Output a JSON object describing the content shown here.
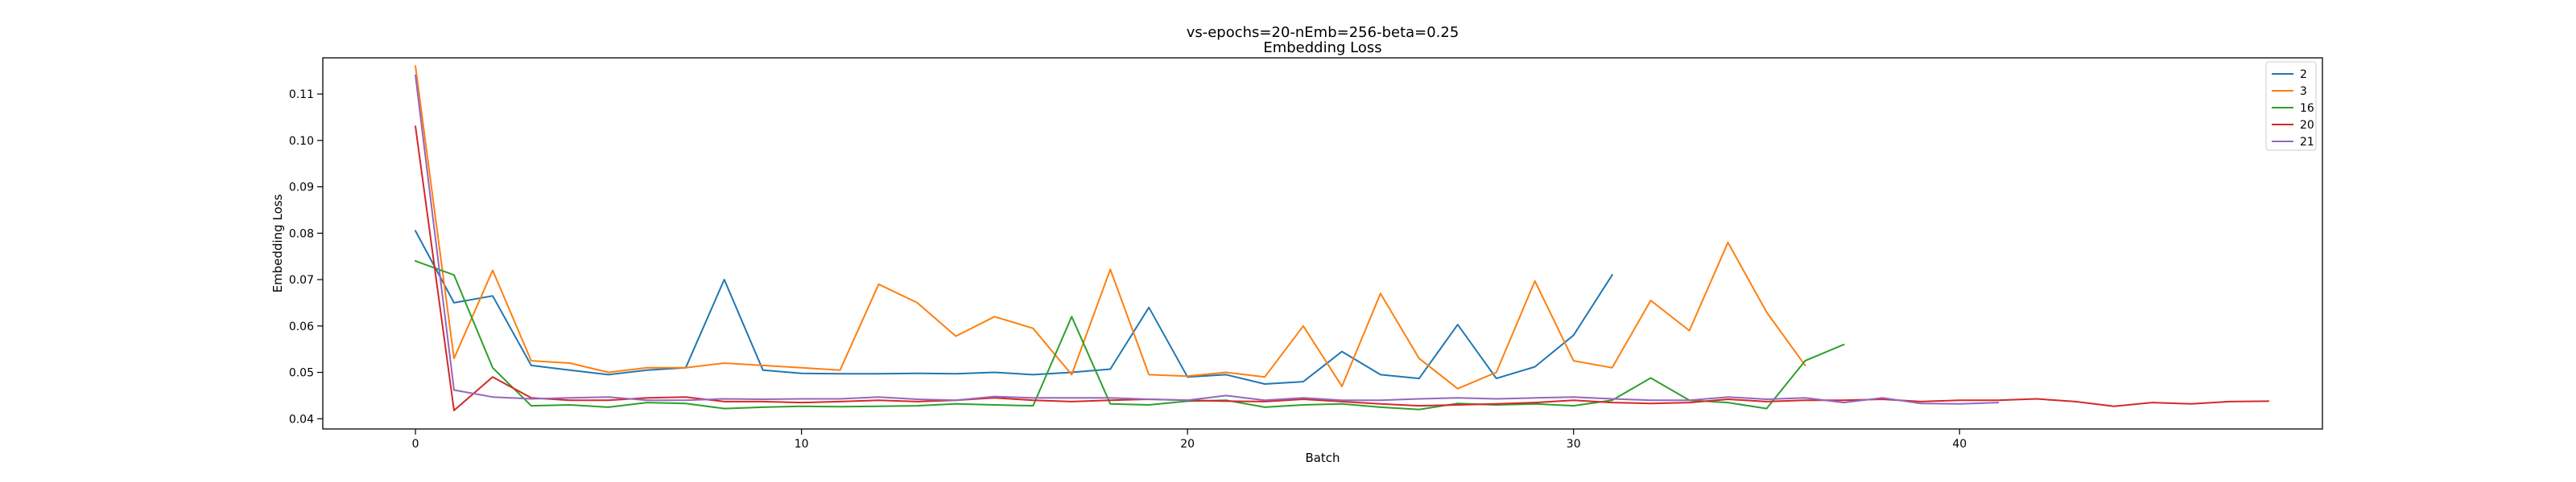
{
  "chart_data": {
    "type": "line",
    "title": "vs-epochs=20-nEmb=256-beta=0.25",
    "subtitle": "Embedding Loss",
    "xlabel": "Batch",
    "ylabel": "Embedding Loss",
    "xlim": [
      -2.4,
      49.4
    ],
    "ylim": [
      0.0378,
      0.1178
    ],
    "xticks": [
      0,
      10,
      20,
      30,
      40
    ],
    "yticks": [
      0.04,
      0.05,
      0.06,
      0.07,
      0.08,
      0.09,
      0.1,
      0.11
    ],
    "grid": false,
    "legend_position": "top-right",
    "series": [
      {
        "name": "2",
        "color": "#1f77b4",
        "values": [
          0.0805,
          0.065,
          0.0665,
          0.0515,
          0.0505,
          0.0495,
          0.0505,
          0.051,
          0.07,
          0.0505,
          0.0498,
          0.0497,
          0.0497,
          0.0498,
          0.0497,
          0.05,
          0.0495,
          0.05,
          0.0507,
          0.064,
          0.049,
          0.0495,
          0.0475,
          0.048,
          0.0545,
          0.0495,
          0.0487,
          0.0603,
          0.0487,
          0.0512,
          0.058,
          0.071
        ]
      },
      {
        "name": "3",
        "color": "#ff7f0e",
        "values": [
          0.116,
          0.053,
          0.072,
          0.0525,
          0.052,
          0.05,
          0.051,
          0.051,
          0.052,
          0.0515,
          0.051,
          0.0505,
          0.069,
          0.065,
          0.0578,
          0.062,
          0.0595,
          0.0495,
          0.0722,
          0.0495,
          0.0492,
          0.05,
          0.049,
          0.06,
          0.047,
          0.067,
          0.053,
          0.0465,
          0.05,
          0.0697,
          0.0525,
          0.051,
          0.0655,
          0.059,
          0.078,
          0.063,
          0.0515
        ]
      },
      {
        "name": "16",
        "color": "#2ca02c",
        "values": [
          0.074,
          0.071,
          0.051,
          0.0428,
          0.043,
          0.0425,
          0.0435,
          0.0433,
          0.0422,
          0.0425,
          0.0427,
          0.0426,
          0.0427,
          0.0428,
          0.0432,
          0.043,
          0.0428,
          0.062,
          0.0432,
          0.043,
          0.0438,
          0.044,
          0.0425,
          0.043,
          0.0432,
          0.0425,
          0.042,
          0.0433,
          0.043,
          0.0432,
          0.0428,
          0.044,
          0.0488,
          0.044,
          0.0435,
          0.0422,
          0.0525,
          0.056
        ]
      },
      {
        "name": "20",
        "color": "#d62728",
        "values": [
          0.103,
          0.0418,
          0.049,
          0.0445,
          0.044,
          0.044,
          0.0445,
          0.0447,
          0.0437,
          0.0437,
          0.0435,
          0.0437,
          0.044,
          0.0437,
          0.044,
          0.0445,
          0.044,
          0.0437,
          0.044,
          0.0442,
          0.044,
          0.0438,
          0.0437,
          0.0442,
          0.0437,
          0.0432,
          0.0428,
          0.043,
          0.0432,
          0.0435,
          0.044,
          0.0435,
          0.0433,
          0.0435,
          0.0442,
          0.0437,
          0.044,
          0.044,
          0.0442,
          0.0437,
          0.044,
          0.044,
          0.0443,
          0.0437,
          0.0427,
          0.0435,
          0.0432,
          0.0437,
          0.0438
        ]
      },
      {
        "name": "21",
        "color": "#9467bd",
        "values": [
          0.114,
          0.0462,
          0.0447,
          0.0443,
          0.0445,
          0.0447,
          0.044,
          0.044,
          0.0443,
          0.0442,
          0.0443,
          0.0443,
          0.0447,
          0.0442,
          0.044,
          0.0448,
          0.0445,
          0.0445,
          0.0445,
          0.0442,
          0.044,
          0.045,
          0.044,
          0.0445,
          0.044,
          0.044,
          0.0443,
          0.0445,
          0.0443,
          0.0445,
          0.0447,
          0.0443,
          0.044,
          0.044,
          0.0447,
          0.0442,
          0.0445,
          0.0435,
          0.0445,
          0.0433,
          0.0432,
          0.0435
        ]
      }
    ]
  }
}
